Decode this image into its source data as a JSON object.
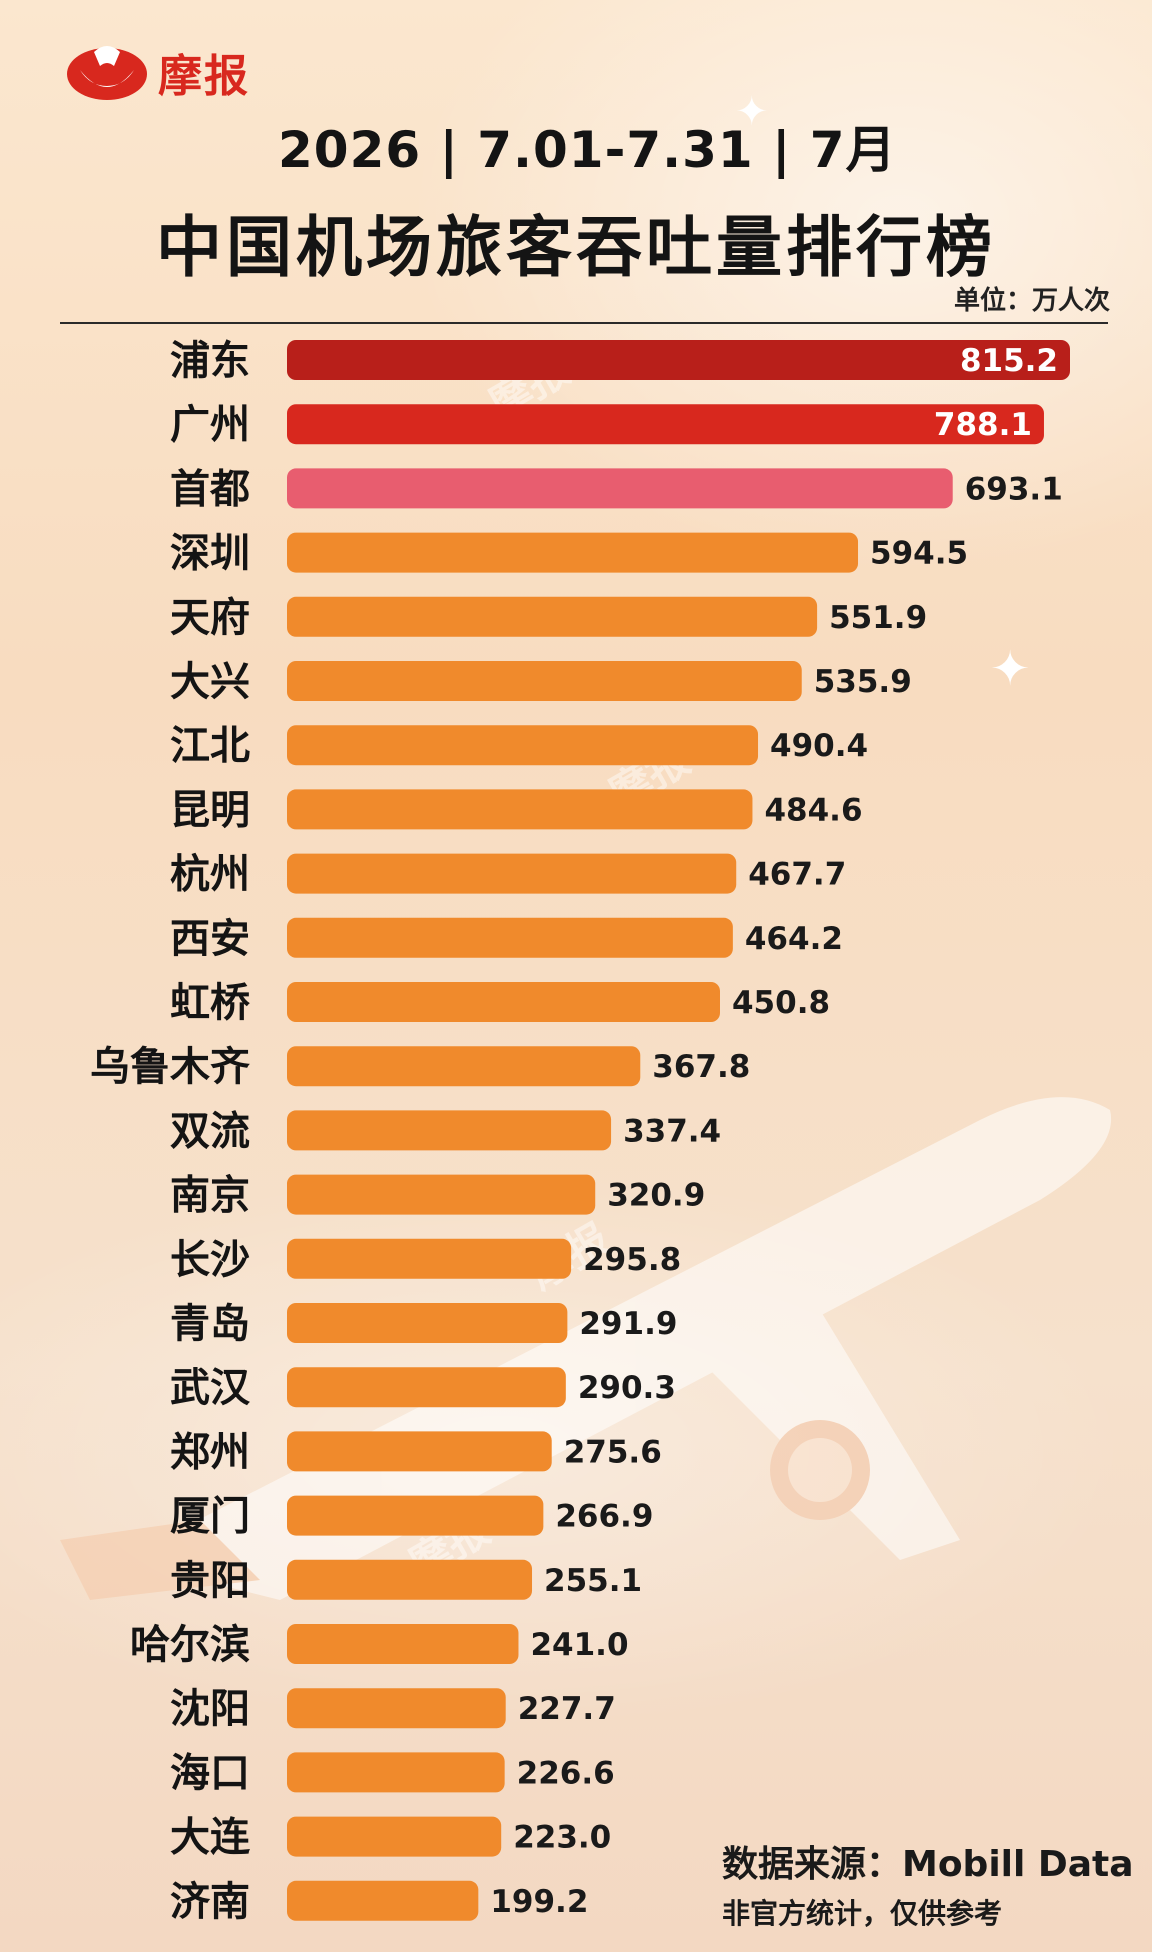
{
  "brand": {
    "logo_text": "摩报",
    "watermark_text": "摩报"
  },
  "header": {
    "period": "2026 | 7.01-7.31 | 7月",
    "title": "中国机场旅客吞吐量排行榜",
    "unit": "单位：万人次"
  },
  "colors": {
    "top1": "#b81f1a",
    "top2": "#d8281e",
    "top3": "#e85d6f",
    "rest": "#f08a2c",
    "logo_red": "#d8281e"
  },
  "chart_data": {
    "type": "bar",
    "orientation": "horizontal",
    "categories": [
      "浦东",
      "广州",
      "首都",
      "深圳",
      "天府",
      "大兴",
      "江北",
      "昆明",
      "杭州",
      "西安",
      "虹桥",
      "乌鲁木齐",
      "双流",
      "南京",
      "长沙",
      "青岛",
      "武汉",
      "郑州",
      "厦门",
      "贵阳",
      "哈尔滨",
      "沈阳",
      "海口",
      "大连",
      "济南"
    ],
    "values": [
      815.2,
      788.1,
      693.1,
      594.5,
      551.9,
      535.9,
      490.4,
      484.6,
      467.7,
      464.2,
      450.8,
      367.8,
      337.4,
      320.9,
      295.8,
      291.9,
      290.3,
      275.6,
      266.9,
      255.1,
      241.0,
      227.7,
      226.6,
      223.0,
      199.2
    ],
    "value_labels": [
      "815.2",
      "788.1",
      "693.1",
      "594.5",
      "551.9",
      "535.9",
      "490.4",
      "484.6",
      "467.7",
      "464.2",
      "450.8",
      "367.8",
      "337.4",
      "320.9",
      "295.8",
      "291.9",
      "290.3",
      "275.6",
      "266.9",
      "255.1",
      "241.0",
      "227.7",
      "226.6",
      "223.0",
      "199.2"
    ],
    "title": "中国机场旅客吞吐量排行榜",
    "xlabel": "",
    "ylabel": "",
    "grid": false
  },
  "footer": {
    "source": "数据来源：Mobill Data",
    "note": "非官方统计，仅供参考"
  }
}
